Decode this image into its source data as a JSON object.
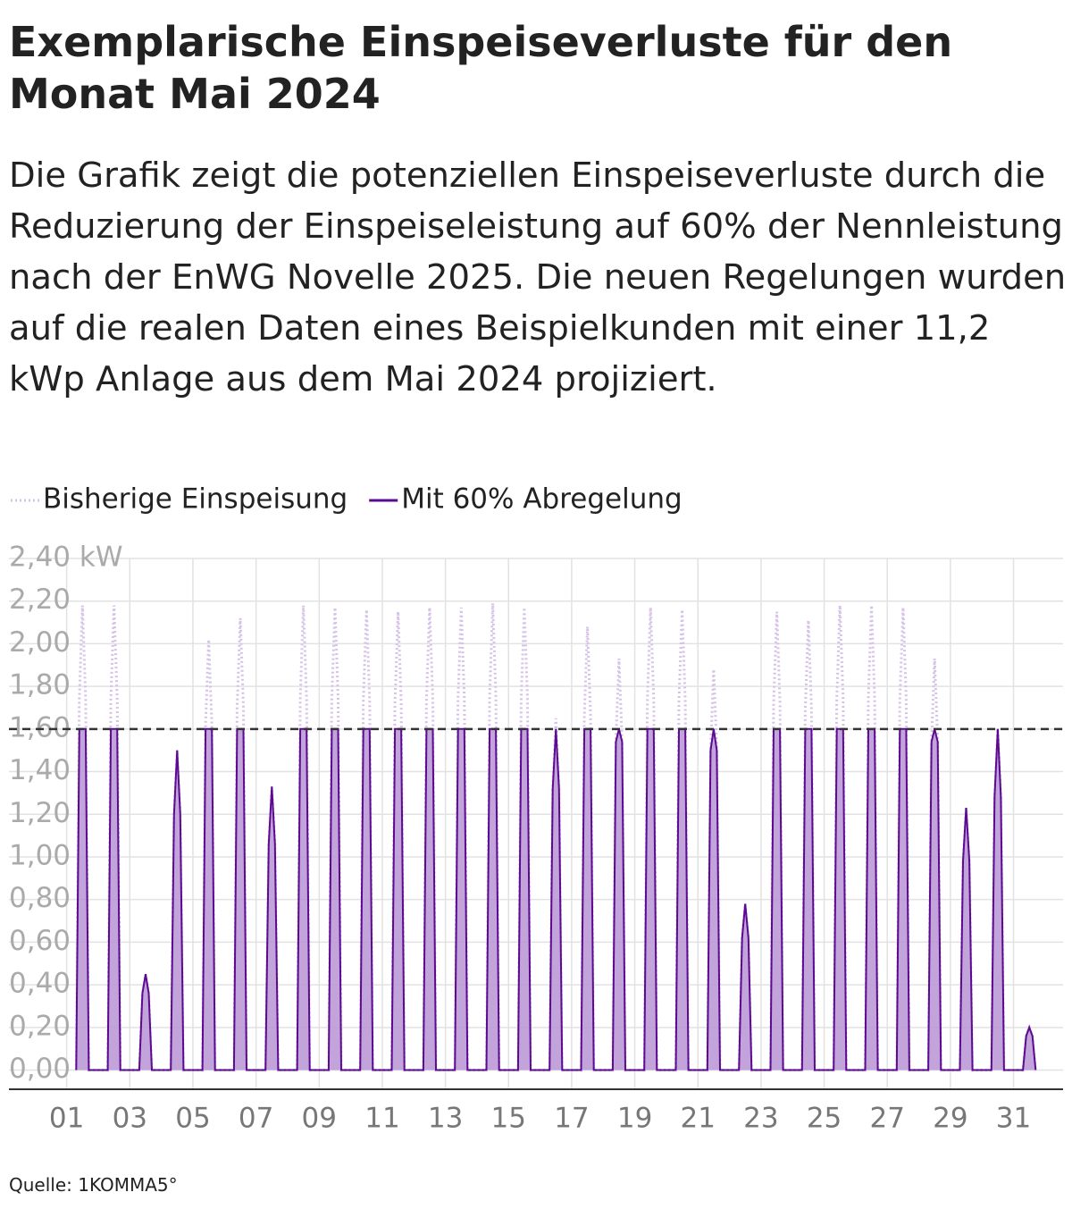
{
  "chart_data": {
    "type": "line",
    "title": "Exemplarische Einspeiseverluste für den Monat Mai 2024",
    "subtitle": "Die Grafik zeigt die potenziellen Einspeiseverluste durch die Reduzierung der Einspeiseleistung auf 60% der Nennleistung nach der EnWG Novelle 2025. Die neuen Regelungen wurden auf die realen Daten eines Beispielkunden mit einer 11,2 kWp Anlage aus dem Mai 2024 projiziert.",
    "source": "Quelle: 1KOMMA5°",
    "x": [
      0.3,
      0.4,
      0.5,
      0.6,
      0.7,
      1.3,
      1.4,
      1.5,
      1.6,
      1.7,
      2.3,
      2.4,
      2.5,
      2.6,
      2.7,
      3.3,
      3.4,
      3.5,
      3.6,
      3.7,
      4.3,
      4.4,
      4.5,
      4.6,
      4.7,
      5.3,
      5.4,
      5.5,
      5.6,
      5.7,
      6.3,
      6.4,
      6.5,
      6.6,
      6.7,
      7.3,
      7.4,
      7.5,
      7.6,
      7.7,
      8.3,
      8.4,
      8.5,
      8.6,
      8.7,
      9.3,
      9.4,
      9.5,
      9.6,
      9.7,
      10.3,
      10.4,
      10.5,
      10.6,
      10.7,
      11.3,
      11.4,
      11.5,
      11.6,
      11.7,
      12.3,
      12.4,
      12.5,
      12.6,
      12.7,
      13.3,
      13.4,
      13.5,
      13.6,
      13.7,
      14.3,
      14.4,
      14.5,
      14.6,
      14.7,
      15.3,
      15.4,
      15.5,
      15.6,
      15.7,
      16.3,
      16.4,
      16.5,
      16.6,
      16.7,
      17.3,
      17.4,
      17.5,
      17.6,
      17.7,
      18.3,
      18.4,
      18.5,
      18.6,
      18.7,
      19.3,
      19.4,
      19.5,
      19.6,
      19.7,
      20.3,
      20.4,
      20.5,
      20.6,
      20.7,
      21.3,
      21.4,
      21.5,
      21.6,
      21.7,
      22.3,
      22.4,
      22.5,
      22.6,
      22.7,
      23.3,
      23.4,
      23.5,
      23.6,
      23.7,
      24.3,
      24.4,
      24.5,
      24.6,
      24.7,
      25.3,
      25.4,
      25.5,
      25.6,
      25.7,
      26.3,
      26.4,
      26.5,
      26.6,
      26.7,
      27.3,
      27.4,
      27.5,
      27.6,
      27.7,
      28.3,
      28.4,
      28.5,
      28.6,
      28.7,
      29.3,
      29.4,
      29.5,
      29.6,
      29.7,
      30.3,
      30.4,
      30.5,
      30.6,
      30.7
    ],
    "series": [
      {
        "name": "Bisherige Einspeisung",
        "color": "#d6c1e8",
        "dashed": true,
        "values": [
          0,
          1.74,
          2.18,
          1.74,
          0,
          0,
          1.74,
          2.18,
          1.74,
          0,
          0,
          0.36,
          0.45,
          0.36,
          0,
          0,
          1.2,
          1.5,
          1.2,
          0,
          0,
          1.62,
          2.02,
          1.62,
          0,
          0,
          1.7,
          2.12,
          1.7,
          0,
          0,
          1.06,
          1.33,
          1.06,
          0,
          0,
          1.74,
          2.18,
          1.74,
          0,
          0,
          1.74,
          2.17,
          1.74,
          0,
          0,
          1.73,
          2.16,
          1.73,
          0,
          0,
          1.72,
          2.15,
          1.72,
          0,
          0,
          1.74,
          2.17,
          1.74,
          0,
          0,
          1.74,
          2.17,
          1.74,
          0,
          0,
          1.75,
          2.19,
          1.75,
          0,
          0,
          1.74,
          2.17,
          1.74,
          0,
          0,
          1.32,
          1.65,
          1.32,
          0,
          0,
          1.66,
          2.08,
          1.66,
          0,
          0,
          1.54,
          1.93,
          1.54,
          0,
          0,
          1.74,
          2.17,
          1.74,
          0,
          0,
          1.73,
          2.16,
          1.73,
          0,
          0,
          1.5,
          1.88,
          1.5,
          0,
          0,
          0.62,
          0.78,
          0.62,
          0,
          0,
          1.72,
          2.15,
          1.72,
          0,
          0,
          1.69,
          2.11,
          1.69,
          0,
          0,
          1.74,
          2.18,
          1.74,
          0,
          0,
          1.74,
          2.18,
          1.74,
          0,
          0,
          1.74,
          2.17,
          1.74,
          0,
          0,
          1.54,
          1.93,
          1.54,
          0,
          0,
          0.98,
          1.23,
          0.98,
          0,
          0,
          1.28,
          1.6,
          1.28,
          0,
          0,
          0.16,
          0.2,
          0.16,
          0
        ]
      },
      {
        "name": "Mit 60% Abregelung",
        "color": "#5b0a91",
        "fill": "#b894d3",
        "values": [
          0,
          1.6,
          1.6,
          1.6,
          0,
          0,
          1.6,
          1.6,
          1.6,
          0,
          0,
          0.36,
          0.45,
          0.36,
          0,
          0,
          1.2,
          1.5,
          1.2,
          0,
          0,
          1.6,
          1.6,
          1.6,
          0,
          0,
          1.6,
          1.6,
          1.6,
          0,
          0,
          1.06,
          1.33,
          1.06,
          0,
          0,
          1.6,
          1.6,
          1.6,
          0,
          0,
          1.6,
          1.6,
          1.6,
          0,
          0,
          1.6,
          1.6,
          1.6,
          0,
          0,
          1.6,
          1.6,
          1.6,
          0,
          0,
          1.6,
          1.6,
          1.6,
          0,
          0,
          1.6,
          1.6,
          1.6,
          0,
          0,
          1.6,
          1.6,
          1.6,
          0,
          0,
          1.6,
          1.6,
          1.6,
          0,
          0,
          1.32,
          1.6,
          1.32,
          0,
          0,
          1.6,
          1.6,
          1.6,
          0,
          0,
          1.54,
          1.6,
          1.54,
          0,
          0,
          1.6,
          1.6,
          1.6,
          0,
          0,
          1.6,
          1.6,
          1.6,
          0,
          0,
          1.5,
          1.6,
          1.5,
          0,
          0,
          0.62,
          0.78,
          0.62,
          0,
          0,
          1.6,
          1.6,
          1.6,
          0,
          0,
          1.6,
          1.6,
          1.6,
          0,
          0,
          1.6,
          1.6,
          1.6,
          0,
          0,
          1.6,
          1.6,
          1.6,
          0,
          0,
          1.6,
          1.6,
          1.6,
          0,
          0,
          1.54,
          1.6,
          1.54,
          0,
          0,
          0.98,
          1.23,
          0.98,
          0,
          0,
          1.28,
          1.6,
          1.28,
          0,
          0,
          0.16,
          0.2,
          0.16,
          0
        ]
      }
    ],
    "threshold": 1.6,
    "xlim": [
      -1.83,
      31.57
    ],
    "xticks": [
      {
        "value": 0,
        "label": "01"
      },
      {
        "value": 2,
        "label": "03"
      },
      {
        "value": 4,
        "label": "05"
      },
      {
        "value": 6,
        "label": "07"
      },
      {
        "value": 8,
        "label": "09"
      },
      {
        "value": 10,
        "label": "11"
      },
      {
        "value": 12,
        "label": "13"
      },
      {
        "value": 14,
        "label": "15"
      },
      {
        "value": 16,
        "label": "17"
      },
      {
        "value": 18,
        "label": "19"
      },
      {
        "value": 20,
        "label": "21"
      },
      {
        "value": 22,
        "label": "23"
      },
      {
        "value": 24,
        "label": "25"
      },
      {
        "value": 26,
        "label": "27"
      },
      {
        "value": 28,
        "label": "29"
      },
      {
        "value": 30,
        "label": "31"
      }
    ],
    "ylim": [
      -0.09,
      2.4
    ],
    "yticks": [
      {
        "value": 0,
        "label": "0,00"
      },
      {
        "value": 0.2,
        "label": "0,20"
      },
      {
        "value": 0.4,
        "label": "0,40"
      },
      {
        "value": 0.6,
        "label": "0,60"
      },
      {
        "value": 0.8,
        "label": "0,80"
      },
      {
        "value": 1,
        "label": "1,00"
      },
      {
        "value": 1.2,
        "label": "1,20"
      },
      {
        "value": 1.4,
        "label": "1,40"
      },
      {
        "value": 1.6,
        "label": "1,60"
      },
      {
        "value": 1.8,
        "label": "1,80"
      },
      {
        "value": 2,
        "label": "2,00"
      },
      {
        "value": 2.2,
        "label": "2,20"
      },
      {
        "value": 2.4,
        "label": "2,40 kW"
      }
    ],
    "grid": true
  }
}
